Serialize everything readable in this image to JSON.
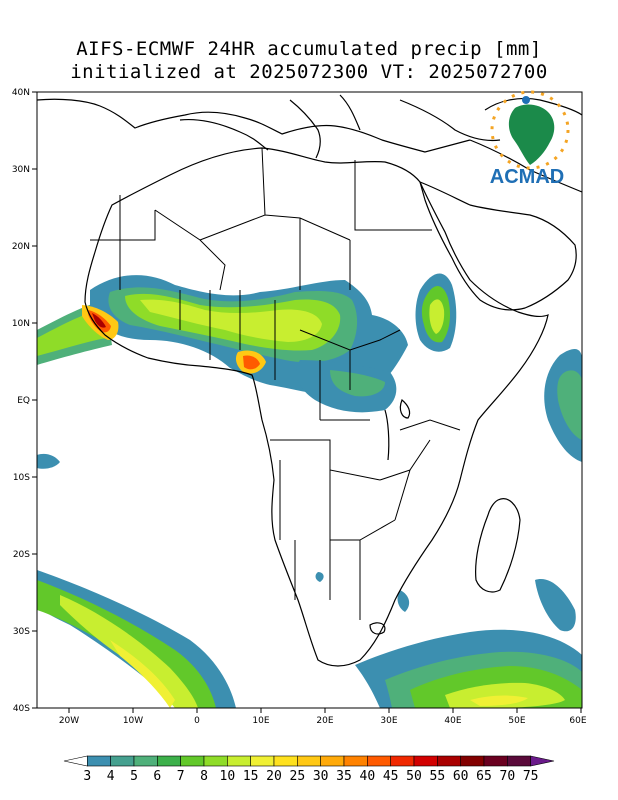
{
  "title": {
    "line1": "AIFS-ECMWF 24HR accumulated precip [mm]",
    "line2": "initialized at 2025072300 VT: 2025072700"
  },
  "logo": {
    "text": "ACMAD",
    "icon": "acmad-africa-sun-logo"
  },
  "axes": {
    "lat_labels": [
      "40N",
      "30N",
      "20N",
      "10N",
      "EQ",
      "10S",
      "20S",
      "30S",
      "40S"
    ],
    "lon_labels": [
      "20W",
      "10W",
      "0",
      "10E",
      "20E",
      "30E",
      "40E",
      "50E",
      "60E"
    ],
    "lat_range": [
      -40,
      40
    ],
    "lon_range": [
      -25,
      60
    ]
  },
  "colorbar": {
    "levels": [
      "3",
      "4",
      "5",
      "6",
      "7",
      "8",
      "10",
      "15",
      "20",
      "25",
      "30",
      "35",
      "40",
      "45",
      "50",
      "55",
      "60",
      "65",
      "70",
      "75"
    ],
    "colors": [
      "#ffffff",
      "#3c8fb0",
      "#45a08f",
      "#4fb07a",
      "#3cb04a",
      "#62c82a",
      "#8fdc28",
      "#c8ee30",
      "#f0f034",
      "#ffe11e",
      "#ffc814",
      "#ffaa0a",
      "#ff8200",
      "#ff5a00",
      "#f02800",
      "#d20000",
      "#aa0000",
      "#820000",
      "#6a0020",
      "#5a0a3a",
      "#6a1a8a"
    ]
  },
  "precip_areas": [
    {
      "name": "west-africa-band",
      "level": "5"
    },
    {
      "name": "guinea-coast-max",
      "level": "60"
    },
    {
      "name": "sahel-band",
      "level": "10"
    },
    {
      "name": "nigeria-max",
      "level": "45"
    },
    {
      "name": "ethiopia-highlands",
      "level": "8"
    },
    {
      "name": "central-africa",
      "level": "5"
    },
    {
      "name": "south-atlantic-front",
      "level": "10"
    },
    {
      "name": "south-indian-front",
      "level": "15"
    },
    {
      "name": "indian-ocean-east",
      "level": "6"
    }
  ]
}
